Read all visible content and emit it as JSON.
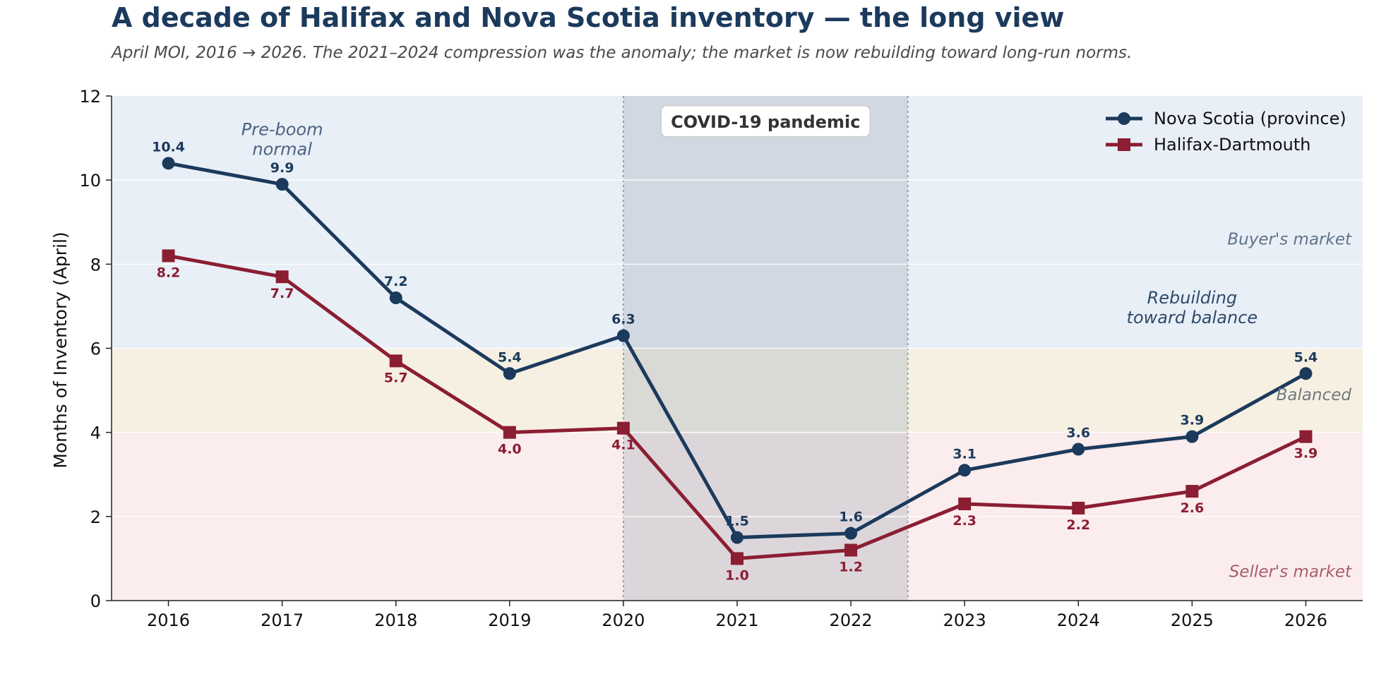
{
  "chart_data": {
    "type": "line",
    "title": "A decade of Halifax and Nova Scotia inventory — the long view",
    "subtitle": "April MOI, 2016 → 2026. The 2021–2024 compression was the anomaly; the market is now rebuilding toward long-run norms.",
    "xlabel": "",
    "ylabel": "Months of Inventory (April)",
    "x": [
      2016,
      2017,
      2018,
      2019,
      2020,
      2021,
      2022,
      2023,
      2024,
      2025,
      2026
    ],
    "xlim": [
      2015.5,
      2026.5
    ],
    "ylim": [
      0,
      12
    ],
    "yticks": [
      0,
      2,
      4,
      6,
      8,
      10,
      12
    ],
    "series": [
      {
        "name": "Nova Scotia (province)",
        "color": "#1b3a5c",
        "marker": "circle",
        "values": [
          10.4,
          9.9,
          7.2,
          5.4,
          6.3,
          1.5,
          1.6,
          3.1,
          3.6,
          3.9,
          5.4
        ]
      },
      {
        "name": "Halifax-Dartmouth",
        "color": "#8b1e32",
        "marker": "square",
        "values": [
          8.2,
          7.7,
          5.7,
          4.0,
          4.1,
          1.0,
          1.2,
          2.3,
          2.2,
          2.6,
          3.9
        ]
      }
    ],
    "bands": [
      {
        "label": "Seller's market",
        "from": 0,
        "to": 4,
        "color": "#fbeced",
        "label_color": "#a85e6c"
      },
      {
        "label": "Balanced",
        "from": 4,
        "to": 6,
        "color": "#f6f0e2",
        "label_color": "#707880"
      },
      {
        "label": "Buyer's market",
        "from": 6,
        "to": 12,
        "color": "#e9eff7",
        "label_color": "#5f7388"
      }
    ],
    "shaded_period": {
      "label": "COVID-19 pandemic",
      "from": 2020,
      "to": 2022.5,
      "color": "#b5bcc6"
    },
    "annotations": [
      {
        "text": [
          "Pre-boom",
          "normal"
        ],
        "x": 2017,
        "y": 11.2,
        "color": "#4a6280"
      },
      {
        "text": [
          "Rebuilding",
          "toward balance"
        ],
        "x": 2025,
        "y": 7.2,
        "color": "#2e4a6a"
      }
    ],
    "grid": true,
    "legend_position": "top-right"
  }
}
